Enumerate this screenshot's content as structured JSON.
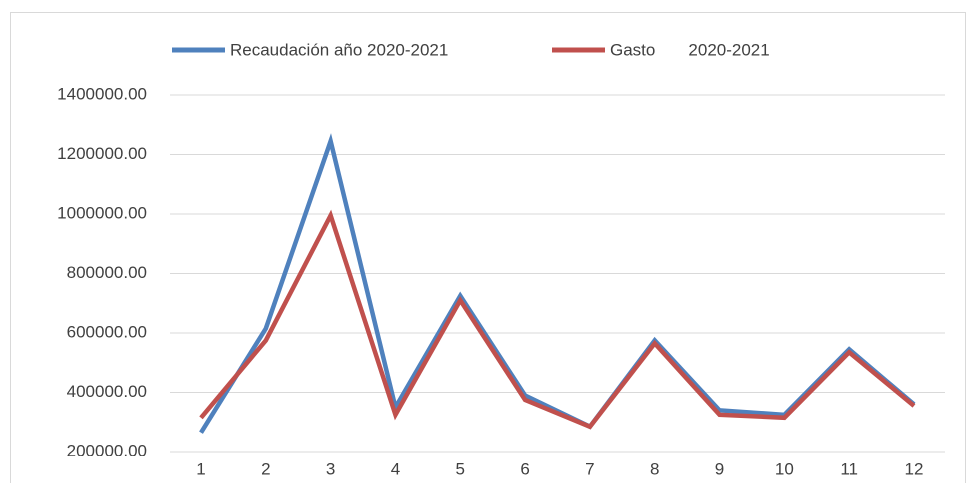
{
  "chart_data": {
    "type": "line",
    "categories": [
      "1",
      "2",
      "3",
      "4",
      "5",
      "6",
      "7",
      "8",
      "9",
      "10",
      "11",
      "12"
    ],
    "series": [
      {
        "name": "Recaudación año 2020-2021",
        "color": "#4f81bd",
        "values": [
          265000,
          615000,
          1245000,
          350000,
          725000,
          390000,
          285000,
          575000,
          340000,
          325000,
          545000,
          360000
        ]
      },
      {
        "name": "Gasto       2020-2021",
        "color": "#c0504d",
        "values": [
          315000,
          575000,
          995000,
          325000,
          710000,
          375000,
          285000,
          565000,
          325000,
          315000,
          535000,
          355000
        ]
      }
    ],
    "ylim": [
      200000,
      1400000
    ],
    "yticks": [
      {
        "value": 200000,
        "label": "200000.00"
      },
      {
        "value": 400000,
        "label": "400000.00"
      },
      {
        "value": 600000,
        "label": "600000.00"
      },
      {
        "value": 800000,
        "label": "800000.00"
      },
      {
        "value": 1000000,
        "label": "1000000.00"
      },
      {
        "value": 1200000,
        "label": "1200000.00"
      },
      {
        "value": 1400000,
        "label": "1400000.00"
      }
    ],
    "grid": true,
    "legend": "top"
  }
}
